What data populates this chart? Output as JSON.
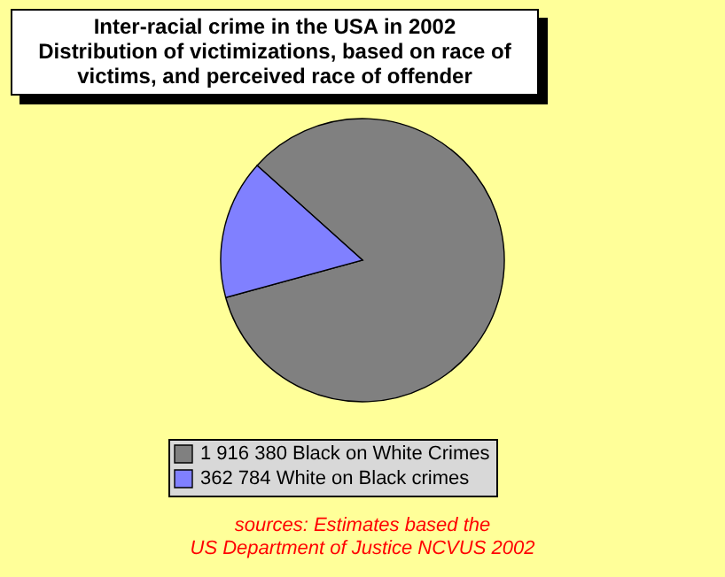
{
  "chart_data": {
    "type": "pie",
    "title": "Inter-racial crime in the USA in 2002",
    "subtitle": "Distribution of victimizations, based on race of victims, and perceived race of offender",
    "categories": [
      "Black on White Crimes",
      "White on Black crimes"
    ],
    "values": [
      1916380,
      362784
    ],
    "value_labels": [
      "1 916 380",
      "362 784"
    ],
    "colors": [
      "#808080",
      "#8080ff"
    ],
    "legend": "bottom",
    "annotations": [
      "sources: Estimates based the",
      "US Department of Justice NCVUS 2002"
    ]
  }
}
